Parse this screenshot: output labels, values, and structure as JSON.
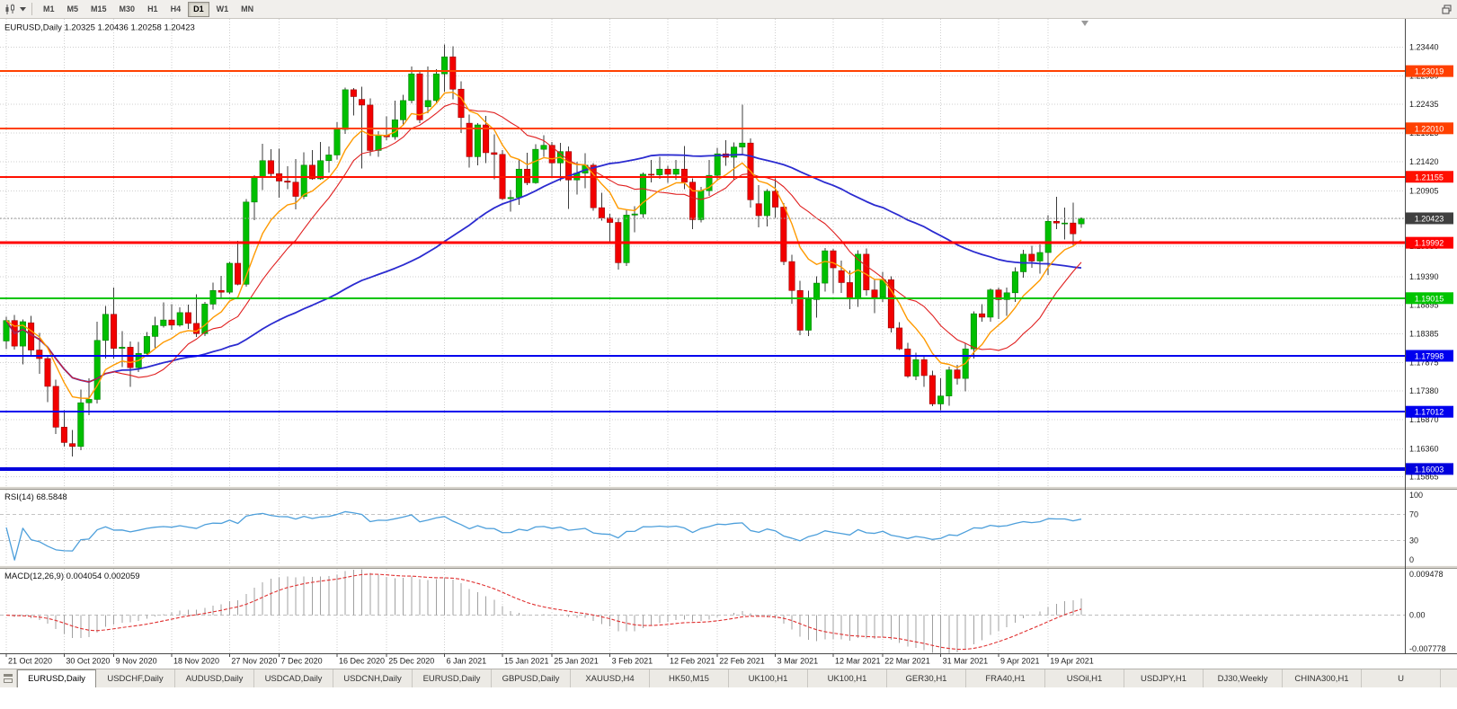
{
  "toolbar": {
    "timeframes": [
      {
        "label": "M1",
        "active": false
      },
      {
        "label": "M5",
        "active": false
      },
      {
        "label": "M15",
        "active": false
      },
      {
        "label": "M30",
        "active": false
      },
      {
        "label": "H1",
        "active": false
      },
      {
        "label": "H4",
        "active": false
      },
      {
        "label": "D1",
        "active": true
      },
      {
        "label": "W1",
        "active": false
      },
      {
        "label": "MN",
        "active": false
      }
    ]
  },
  "chart_data": {
    "type": "candlestick",
    "symbol": "EURUSD",
    "timeframe": "Daily",
    "header": "EURUSD,Daily 1.20325 1.20436 1.20258 1.20423",
    "current": {
      "open": 1.20325,
      "high": 1.20436,
      "low": 1.20258,
      "close": 1.20423
    },
    "price_range": {
      "min": 1.157,
      "max": 1.2394
    },
    "y_axis_labels": [
      "1.23440",
      "1.22930",
      "1.22435",
      "1.21925",
      "1.21420",
      "1.20905",
      "1.20415",
      "1.19930",
      "1.19390",
      "1.18895",
      "1.18385",
      "1.17875",
      "1.17380",
      "1.16870",
      "1.16360",
      "1.15865"
    ],
    "date_labels": [
      {
        "label": "21 Oct 2020",
        "index": 0
      },
      {
        "label": "30 Oct 2020",
        "index": 7
      },
      {
        "label": "9 Nov 2020",
        "index": 13
      },
      {
        "label": "18 Nov 2020",
        "index": 20
      },
      {
        "label": "27 Nov 2020",
        "index": 27
      },
      {
        "label": "7 Dec 2020",
        "index": 33
      },
      {
        "label": "16 Dec 2020",
        "index": 40
      },
      {
        "label": "25 Dec 2020",
        "index": 46
      },
      {
        "label": "6 Jan 2021",
        "index": 53
      },
      {
        "label": "15 Jan 2021",
        "index": 60
      },
      {
        "label": "25 Jan 2021",
        "index": 66
      },
      {
        "label": "3 Feb 2021",
        "index": 73
      },
      {
        "label": "12 Feb 2021",
        "index": 80
      },
      {
        "label": "22 Feb 2021",
        "index": 86
      },
      {
        "label": "3 Mar 2021",
        "index": 93
      },
      {
        "label": "12 Mar 2021",
        "index": 100
      },
      {
        "label": "22 Mar 2021",
        "index": 106
      },
      {
        "label": "31 Mar 2021",
        "index": 113
      },
      {
        "label": "9 Apr 2021",
        "index": 120
      },
      {
        "label": "19 Apr 2021",
        "index": 126
      }
    ],
    "levels": [
      {
        "label": "1.23019",
        "price": 1.23019,
        "color": "#ff4000",
        "width": 2
      },
      {
        "label": "1.22010",
        "price": 1.2201,
        "color": "#ff4000",
        "width": 2
      },
      {
        "label": "1.21155",
        "price": 1.21155,
        "color": "#ff1000",
        "width": 2
      },
      {
        "label": "1.19992",
        "price": 1.19992,
        "color": "#ff0000",
        "width": 3
      },
      {
        "label": "1.19015",
        "price": 1.19015,
        "color": "#00c400",
        "width": 2
      },
      {
        "label": "1.17998",
        "price": 1.17998,
        "color": "#0000ee",
        "width": 2
      },
      {
        "label": "1.17012",
        "price": 1.17012,
        "color": "#0000ee",
        "width": 2
      },
      {
        "label": "1.16003",
        "price": 1.16003,
        "color": "#0000dd",
        "width": 4
      }
    ],
    "current_price": {
      "value": "1.20423",
      "price": 1.20423,
      "badge_color": "#3f3f3f"
    },
    "moving_averages": [
      {
        "name": "ma-slow-blue",
        "method": "sma",
        "period": 50,
        "color": "#2b2bd0",
        "width": 1.8
      },
      {
        "name": "ma-mid-red",
        "method": "sma",
        "period": 14,
        "color": "#e01f1f",
        "width": 1.1
      },
      {
        "name": "ma-fast-orange",
        "method": "ema",
        "period": 8,
        "color": "#ff9a00",
        "width": 1.4
      }
    ],
    "indicators": {
      "rsi": {
        "label": "RSI(14) 68.5848",
        "period": 14,
        "color": "#4d9fdb",
        "levels": [
          "100",
          "70",
          "30",
          "0"
        ],
        "level_lines": [
          70,
          30
        ],
        "scale": {
          "min": -8,
          "max": 108
        }
      },
      "macd": {
        "label": "MACD(12,26,9) 0.004054 0.002059",
        "fast": 12,
        "slow": 26,
        "signal_period": 9,
        "histogram_color": "#a0a0a0",
        "signal_color": "#e03030",
        "scale_labels": [
          "0.009478",
          "0.00",
          "-0.007778"
        ],
        "scale": {
          "min": -0.007778,
          "max": 0.009478
        }
      }
    },
    "candles": [
      [
        1.1826,
        1.1869,
        1.1812,
        1.1862
      ],
      [
        1.1862,
        1.1872,
        1.1811,
        1.1817
      ],
      [
        1.1817,
        1.1864,
        1.1785,
        1.186
      ],
      [
        1.1858,
        1.187,
        1.18,
        1.181
      ],
      [
        1.181,
        1.184,
        1.1768,
        1.1795
      ],
      [
        1.1795,
        1.18,
        1.1718,
        1.1746
      ],
      [
        1.1746,
        1.1758,
        1.1662,
        1.1674
      ],
      [
        1.1674,
        1.1704,
        1.164,
        1.1647
      ],
      [
        1.1645,
        1.1669,
        1.1622,
        1.164
      ],
      [
        1.164,
        1.174,
        1.1633,
        1.1717
      ],
      [
        1.1717,
        1.176,
        1.1695,
        1.1723
      ],
      [
        1.1723,
        1.186,
        1.1716,
        1.1827
      ],
      [
        1.1827,
        1.1888,
        1.1795,
        1.1873
      ],
      [
        1.1873,
        1.192,
        1.1795,
        1.1813
      ],
      [
        1.1813,
        1.1843,
        1.178,
        1.1815
      ],
      [
        1.1815,
        1.1825,
        1.1745,
        1.1779
      ],
      [
        1.1779,
        1.1824,
        1.1771,
        1.1804
      ],
      [
        1.1804,
        1.1842,
        1.1799,
        1.1834
      ],
      [
        1.1834,
        1.1869,
        1.1814,
        1.1853
      ],
      [
        1.1853,
        1.1894,
        1.185,
        1.1863
      ],
      [
        1.1863,
        1.1891,
        1.1846,
        1.1854
      ],
      [
        1.1854,
        1.1885,
        1.1851,
        1.1876
      ],
      [
        1.1876,
        1.189,
        1.1847,
        1.1857
      ],
      [
        1.1857,
        1.1908,
        1.1833,
        1.1839
      ],
      [
        1.1839,
        1.1895,
        1.1835,
        1.1891
      ],
      [
        1.1891,
        1.1929,
        1.1881,
        1.1915
      ],
      [
        1.1915,
        1.1941,
        1.1903,
        1.1912
      ],
      [
        1.1912,
        1.1965,
        1.1909,
        1.1963
      ],
      [
        1.1963,
        1.2003,
        1.1924,
        1.1926
      ],
      [
        1.1926,
        1.2076,
        1.1922,
        1.2071
      ],
      [
        1.2071,
        1.2118,
        1.2039,
        1.2115
      ],
      [
        1.2115,
        1.2174,
        1.2092,
        1.2144
      ],
      [
        1.2144,
        1.2164,
        1.2115,
        1.2121
      ],
      [
        1.2121,
        1.2165,
        1.2079,
        1.2108
      ],
      [
        1.2108,
        1.2134,
        1.2094,
        1.2106
      ],
      [
        1.2106,
        1.2147,
        1.2058,
        1.2081
      ],
      [
        1.2081,
        1.2159,
        1.2076,
        1.2136
      ],
      [
        1.2136,
        1.2163,
        1.211,
        1.2112
      ],
      [
        1.2112,
        1.2177,
        1.211,
        1.2144
      ],
      [
        1.2144,
        1.2169,
        1.2123,
        1.2154
      ],
      [
        1.2154,
        1.2212,
        1.2146,
        1.2199
      ],
      [
        1.2199,
        1.2273,
        1.2191,
        1.2269
      ],
      [
        1.2269,
        1.2272,
        1.2224,
        1.2257
      ],
      [
        1.2252,
        1.2274,
        1.213,
        1.2242
      ],
      [
        1.2242,
        1.2254,
        1.2152,
        1.2162
      ],
      [
        1.2162,
        1.2196,
        1.2151,
        1.2189
      ],
      [
        1.2189,
        1.2222,
        1.218,
        1.2186
      ],
      [
        1.2186,
        1.225,
        1.2181,
        1.2216
      ],
      [
        1.2216,
        1.226,
        1.2208,
        1.225
      ],
      [
        1.225,
        1.231,
        1.2245,
        1.2297
      ],
      [
        1.2297,
        1.2304,
        1.221,
        1.2216
      ],
      [
        1.2239,
        1.231,
        1.2228,
        1.225
      ],
      [
        1.225,
        1.2305,
        1.2247,
        1.2297
      ],
      [
        1.2297,
        1.2349,
        1.2266,
        1.2327
      ],
      [
        1.2327,
        1.2346,
        1.2252,
        1.227
      ],
      [
        1.227,
        1.2284,
        1.2193,
        1.222
      ],
      [
        1.221,
        1.2225,
        1.2132,
        1.2151
      ],
      [
        1.2151,
        1.221,
        1.2136,
        1.2207
      ],
      [
        1.2207,
        1.2223,
        1.214,
        1.2158
      ],
      [
        1.2158,
        1.219,
        1.2111,
        1.2155
      ],
      [
        1.2155,
        1.2163,
        1.2075,
        1.2077
      ],
      [
        1.2077,
        1.2092,
        1.2054,
        1.2079
      ],
      [
        1.2079,
        1.2145,
        1.2066,
        1.2129
      ],
      [
        1.2129,
        1.2158,
        1.2101,
        1.2105
      ],
      [
        1.2105,
        1.2173,
        1.2103,
        1.2164
      ],
      [
        1.2164,
        1.2189,
        1.2151,
        1.2171
      ],
      [
        1.2171,
        1.2177,
        1.2116,
        1.214
      ],
      [
        1.214,
        1.2175,
        1.2108,
        1.216
      ],
      [
        1.216,
        1.2169,
        1.2059,
        1.211
      ],
      [
        1.211,
        1.2142,
        1.2084,
        1.2122
      ],
      [
        1.2122,
        1.2157,
        1.2095,
        1.2136
      ],
      [
        1.2136,
        1.214,
        1.2056,
        1.2061
      ],
      [
        1.2061,
        1.2087,
        1.2038,
        1.2043
      ],
      [
        1.2043,
        1.205,
        1.1999,
        1.2035
      ],
      [
        1.2035,
        1.2043,
        1.1952,
        1.1964
      ],
      [
        1.1964,
        1.2058,
        1.1958,
        1.2048
      ],
      [
        1.2048,
        1.2064,
        1.2018,
        1.205
      ],
      [
        1.205,
        1.2123,
        1.2043,
        1.212
      ],
      [
        1.212,
        1.2145,
        1.2106,
        1.2119
      ],
      [
        1.2119,
        1.2151,
        1.2112,
        1.2129
      ],
      [
        1.2129,
        1.2135,
        1.2105,
        1.212
      ],
      [
        1.212,
        1.2145,
        1.211,
        1.2129
      ],
      [
        1.2129,
        1.217,
        1.2094,
        1.2106
      ],
      [
        1.2106,
        1.2113,
        1.2023,
        1.204
      ],
      [
        1.204,
        1.2098,
        1.2035,
        1.2091
      ],
      [
        1.2091,
        1.2145,
        1.2082,
        1.2118
      ],
      [
        1.2118,
        1.2167,
        1.2109,
        1.2156
      ],
      [
        1.2156,
        1.218,
        1.2135,
        1.215
      ],
      [
        1.215,
        1.2176,
        1.211,
        1.2168
      ],
      [
        1.2168,
        1.2243,
        1.2155,
        1.2175
      ],
      [
        1.2175,
        1.2183,
        1.2061,
        1.2075
      ],
      [
        1.2068,
        1.2101,
        1.2026,
        1.2047
      ],
      [
        1.2047,
        1.2094,
        1.2028,
        1.209
      ],
      [
        1.209,
        1.2113,
        1.2043,
        1.2062
      ],
      [
        1.2062,
        1.2069,
        1.196,
        1.1966
      ],
      [
        1.1966,
        1.1978,
        1.1892,
        1.1915
      ],
      [
        1.1915,
        1.1932,
        1.1836,
        1.1845
      ],
      [
        1.1845,
        1.1915,
        1.1835,
        1.1899
      ],
      [
        1.1899,
        1.194,
        1.1867,
        1.1928
      ],
      [
        1.1928,
        1.199,
        1.1913,
        1.1985
      ],
      [
        1.1985,
        1.1988,
        1.191,
        1.1955
      ],
      [
        1.195,
        1.1968,
        1.1911,
        1.1929
      ],
      [
        1.1929,
        1.195,
        1.1882,
        1.19
      ],
      [
        1.19,
        1.1986,
        1.1886,
        1.1979
      ],
      [
        1.1979,
        1.1989,
        1.1906,
        1.1916
      ],
      [
        1.1916,
        1.1935,
        1.1875,
        1.1903
      ],
      [
        1.1903,
        1.1948,
        1.1895,
        1.1934
      ],
      [
        1.1934,
        1.194,
        1.1841,
        1.1849
      ],
      [
        1.1849,
        1.1859,
        1.181,
        1.1812
      ],
      [
        1.1812,
        1.1823,
        1.1761,
        1.1764
      ],
      [
        1.1764,
        1.1805,
        1.1757,
        1.1793
      ],
      [
        1.1793,
        1.1798,
        1.1745,
        1.1765
      ],
      [
        1.1765,
        1.1774,
        1.1711,
        1.1715
      ],
      [
        1.1715,
        1.176,
        1.1704,
        1.1729
      ],
      [
        1.1729,
        1.1781,
        1.1712,
        1.1775
      ],
      [
        1.1775,
        1.1784,
        1.1749,
        1.176
      ],
      [
        1.176,
        1.1821,
        1.1737,
        1.1812
      ],
      [
        1.1812,
        1.1878,
        1.1795,
        1.1874
      ],
      [
        1.1874,
        1.1891,
        1.186,
        1.1868
      ],
      [
        1.1868,
        1.1919,
        1.186,
        1.1916
      ],
      [
        1.1916,
        1.192,
        1.1865,
        1.1899
      ],
      [
        1.1899,
        1.192,
        1.187,
        1.1911
      ],
      [
        1.1911,
        1.1956,
        1.1895,
        1.1948
      ],
      [
        1.1948,
        1.1987,
        1.1938,
        1.1979
      ],
      [
        1.1979,
        1.1994,
        1.1955,
        1.1967
      ],
      [
        1.1967,
        1.1996,
        1.1945,
        1.1982
      ],
      [
        1.1982,
        1.2048,
        1.1942,
        1.2037
      ],
      [
        1.2037,
        1.208,
        1.2023,
        1.2034
      ],
      [
        1.2034,
        1.2061,
        1.2005,
        1.2034
      ],
      [
        1.2034,
        1.207,
        1.1995,
        1.2015
      ],
      [
        1.20325,
        1.20436,
        1.20258,
        1.20423
      ]
    ]
  },
  "bottom_tabs": [
    {
      "label": "EURUSD,Daily",
      "active": true
    },
    {
      "label": "USDCHF,Daily",
      "active": false
    },
    {
      "label": "AUDUSD,Daily",
      "active": false
    },
    {
      "label": "USDCAD,Daily",
      "active": false
    },
    {
      "label": "USDCNH,Daily",
      "active": false
    },
    {
      "label": "EURUSD,Daily",
      "active": false
    },
    {
      "label": "GBPUSD,Daily",
      "active": false
    },
    {
      "label": "XAUUSD,H4",
      "active": false
    },
    {
      "label": "HK50,M15",
      "active": false
    },
    {
      "label": "UK100,H1",
      "active": false
    },
    {
      "label": "UK100,H1",
      "active": false
    },
    {
      "label": "GER30,H1",
      "active": false
    },
    {
      "label": "FRA40,H1",
      "active": false
    },
    {
      "label": "USOil,H1",
      "active": false
    },
    {
      "label": "USDJPY,H1",
      "active": false
    },
    {
      "label": "DJ30,Weekly",
      "active": false
    },
    {
      "label": "CHINA300,H1",
      "active": false
    },
    {
      "label": "U",
      "active": false
    }
  ],
  "colors": {
    "background": "#ffffff",
    "grid": "#cfcfcf",
    "bull": "#00bf00",
    "bear": "#f20000",
    "wick": "#3c3c3c",
    "candle_border_up": "#008000",
    "candle_border_down": "#990000",
    "axis_text": "#1b1b1b",
    "pane_divider": "#d6d3cc",
    "axis_line": "#4a4a4a",
    "current_price_line": "#9b9b9b"
  }
}
